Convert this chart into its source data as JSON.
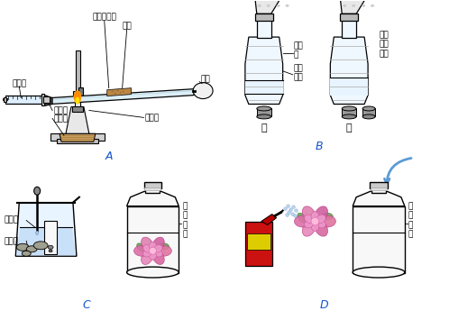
{
  "background_color": "#ffffff",
  "arrow_color": "#5b9bd5",
  "line_color": "#000000",
  "rose_color": "#e88ab4",
  "spray_red": "#cc2222",
  "spray_yellow": "#ddcc00",
  "bottle_fill": "#f0f8ff",
  "jar_fill": "#f8f8f8",
  "wood_color": "#c8a060",
  "labels": {
    "注射器": "注射器",
    "橡胶塞": "橡胶塞",
    "铁架台": "铁架台",
    "硬质玻璃管": "硬质玻璃管",
    "铜粉": "铜粉",
    "气球": "气球",
    "酒精灯": "酒精灯",
    "蒸馏水": "蒸馏\n水",
    "二氧化碳": "二氧\n化碳",
    "氢氧化钠溶液": "氢氧\n化钠\n溶液",
    "甲": "甲",
    "乙": "乙",
    "稀盐酸": "稀盐酸",
    "石灰石": "石灰石",
    "二氧化碳_C": "二\n氧\n化\n碳",
    "二氧化碳_D": "二\n氧\n化\n碳",
    "A": "A",
    "B": "B",
    "C": "C",
    "D": "D"
  }
}
